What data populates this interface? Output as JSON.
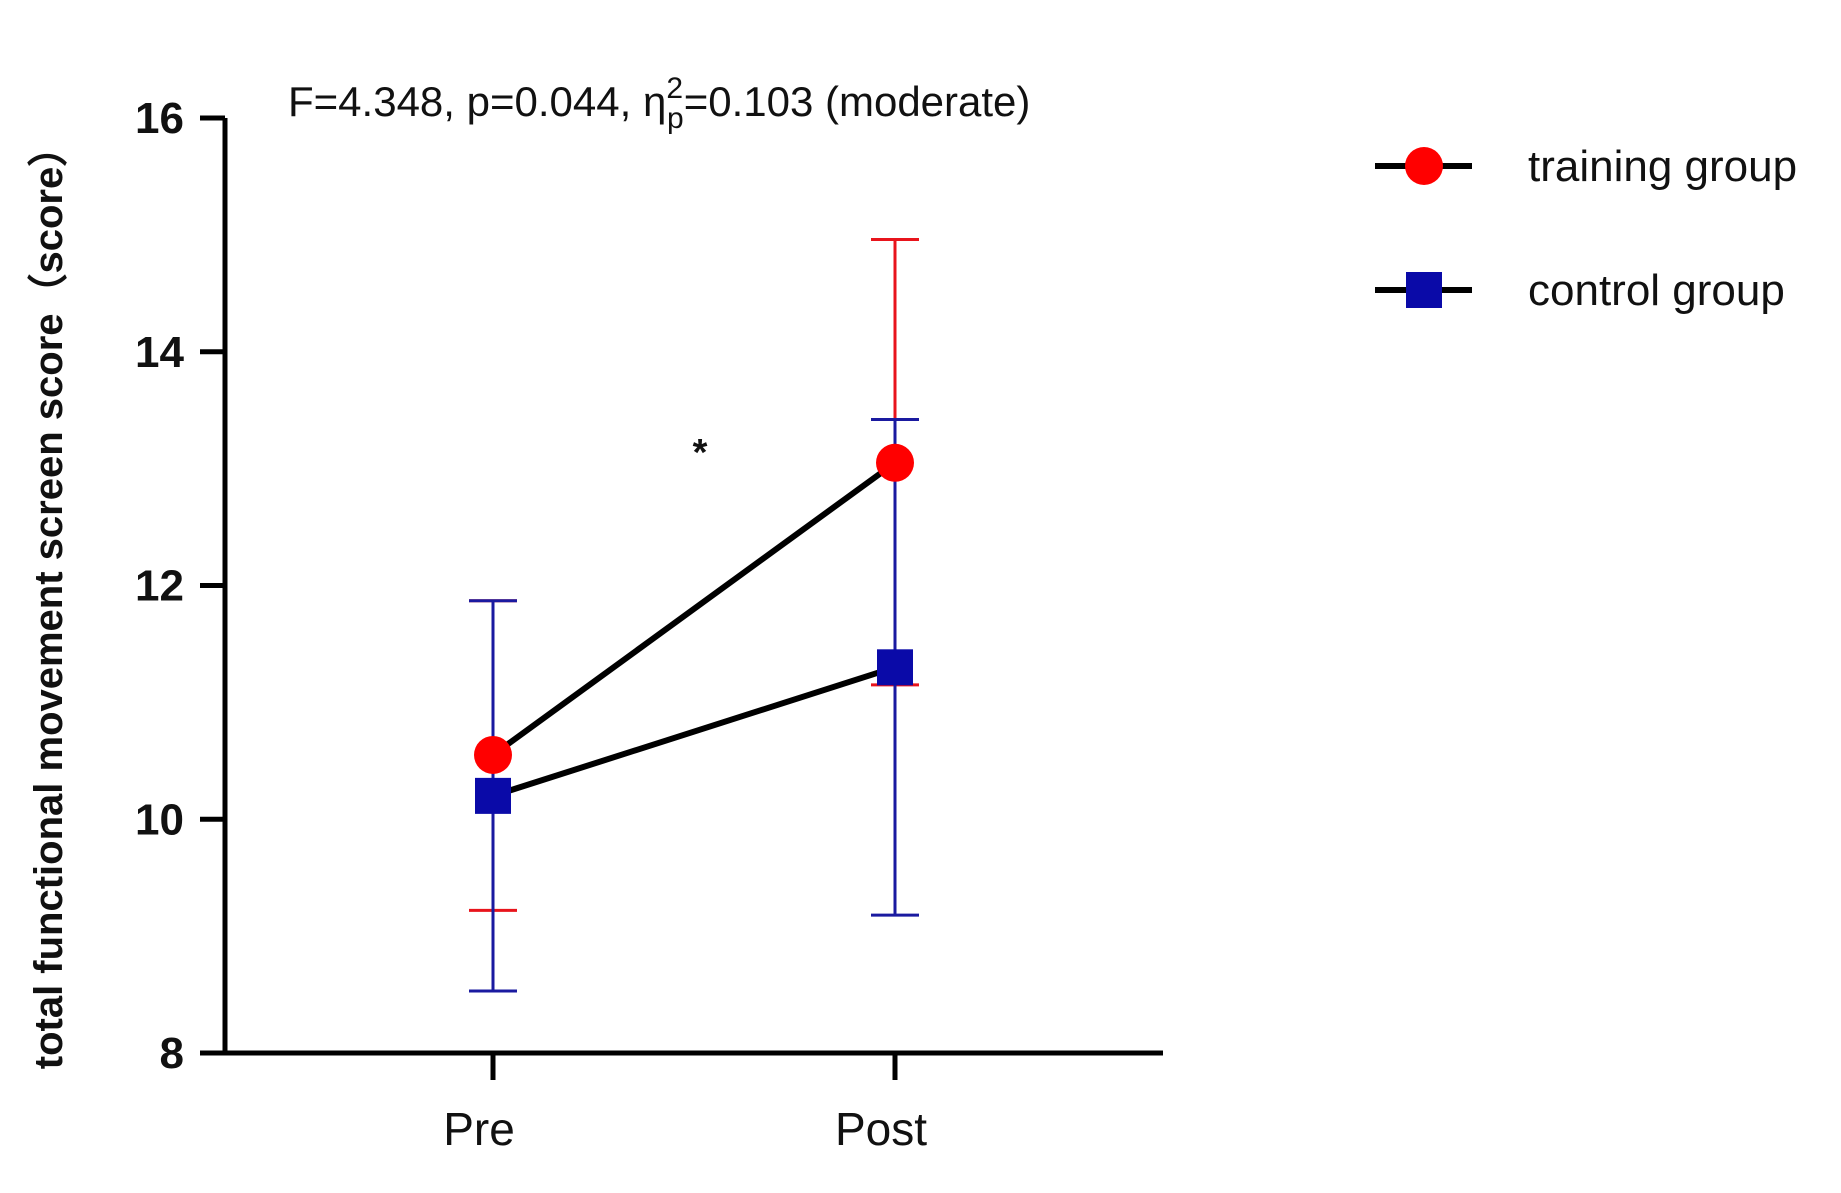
{
  "chart_data": {
    "type": "line",
    "title": "",
    "annotation": {
      "prefix": "F=4.348, p=0.044, η",
      "sup": "2",
      "sub": "p",
      "suffix": "=0.103 (moderate)"
    },
    "significance_marker": "*",
    "xlabel": "",
    "ylabel": "total functional movement screen score（score）",
    "categories": [
      "Pre",
      "Post"
    ],
    "ylim": [
      8,
      16
    ],
    "yticks": [
      "8",
      "10",
      "12",
      "14",
      "16"
    ],
    "grid": false,
    "legend_position": "top-right",
    "series": [
      {
        "name": "training group",
        "marker": "circle",
        "color": "#ff0000",
        "error_color": "#e8141c",
        "line_color": "#000000",
        "values": [
          10.55,
          13.05
        ],
        "error_low": [
          9.22,
          11.15
        ],
        "error_high": [
          11.87,
          14.96
        ]
      },
      {
        "name": "control group",
        "marker": "square",
        "color": "#0a0aa8",
        "error_color": "#1a1aa0",
        "line_color": "#000000",
        "values": [
          10.2,
          11.3
        ],
        "error_low": [
          8.53,
          9.18
        ],
        "error_high": [
          11.87,
          13.42
        ]
      }
    ]
  }
}
